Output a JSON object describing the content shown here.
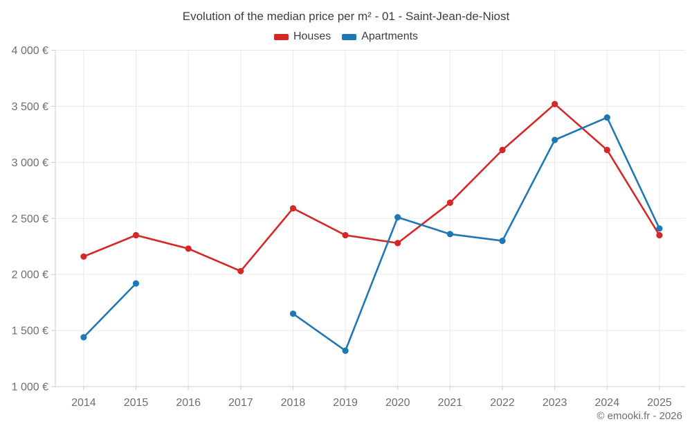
{
  "footer": {
    "credit": "© emooki.fr - 2026"
  },
  "chart_data": {
    "type": "line",
    "title": "Evolution of the median price per m² - 01 - Saint-Jean-de-Niost",
    "categories": [
      "2014",
      "2015",
      "2016",
      "2017",
      "2018",
      "2019",
      "2020",
      "2021",
      "2022",
      "2023",
      "2024",
      "2025"
    ],
    "series": [
      {
        "name": "Houses",
        "color": "#d62728",
        "values": [
          2160,
          2350,
          2230,
          2030,
          2590,
          2350,
          2280,
          2640,
          3110,
          3520,
          3110,
          2350
        ]
      },
      {
        "name": "Apartments",
        "color": "#1f77b4",
        "values": [
          1440,
          1920,
          null,
          null,
          1650,
          1320,
          2510,
          2360,
          2300,
          3200,
          3400,
          2410
        ]
      }
    ],
    "ylim": [
      1000,
      4000
    ],
    "y_ticks": [
      {
        "value": 1000,
        "label": "1 000 €"
      },
      {
        "value": 1500,
        "label": "1 500 €"
      },
      {
        "value": 2000,
        "label": "2 000 €"
      },
      {
        "value": 2500,
        "label": "2 500 €"
      },
      {
        "value": 3000,
        "label": "3 000 €"
      },
      {
        "value": 3500,
        "label": "3 500 €"
      },
      {
        "value": 4000,
        "label": "4 000 €"
      }
    ],
    "legend_position": "top",
    "grid": true,
    "palette": {
      "grid_line": "#e9e9e9",
      "axis_line": "#cccccc",
      "tick_label": "#6e6e6e",
      "title_text": "#3d3d3d"
    }
  }
}
